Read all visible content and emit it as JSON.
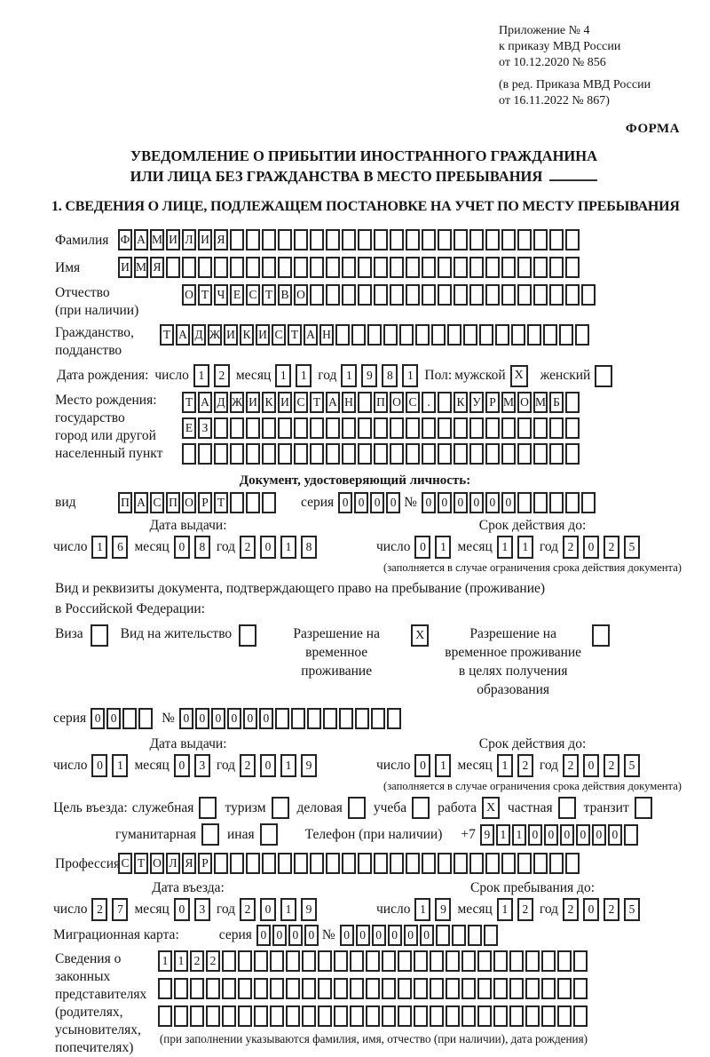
{
  "date_words": {
    "day": "число",
    "month": "месяц",
    "year": "год"
  },
  "header": {
    "lines": [
      "Приложение № 4",
      "к приказу МВД России",
      "от 10.12.2020 № 856"
    ],
    "sub_lines": [
      "(в ред. Приказа МВД России",
      "от 16.11.2022 № 867)"
    ],
    "form_label": "ФОРМА"
  },
  "title": {
    "line1": "УВЕДОМЛЕНИЕ О ПРИБЫТИИ ИНОСТРАННОГО ГРАЖДАНИНА",
    "line2": "ИЛИ ЛИЦА БЕЗ ГРАЖДАНСТВА В МЕСТО ПРЕБЫВАНИЯ"
  },
  "section1_title": "1. СВЕДЕНИЯ О ЛИЦЕ, ПОДЛЕЖАЩЕМ ПОСТАНОВКЕ НА УЧЕТ ПО МЕСТУ ПРЕБЫВАНИЯ",
  "fields": {
    "surname": {
      "label": "Фамилия",
      "boxes": {
        "chars": "ФАМИЛИЯ",
        "count": 29
      }
    },
    "name": {
      "label": "Имя",
      "boxes": {
        "chars": "ИМЯ",
        "count": 29
      }
    },
    "patronymic": {
      "label1": "Отчество",
      "label2": "(при наличии)",
      "boxes": {
        "chars": "ОТЧЕСТВО",
        "count": 26
      }
    },
    "citizenship": {
      "label1": "Гражданство,",
      "label2": "подданство",
      "boxes": {
        "chars": "ТАДЖИКИСТАН",
        "count": 27
      }
    },
    "birth_date": {
      "label": "Дата рождения:",
      "day": "12",
      "month": "11",
      "year": "1981",
      "sex_label": "Пол:",
      "male_label": "мужской",
      "male_checked": "X",
      "female_label": "женский",
      "female_checked": ""
    },
    "birth_place": {
      "labels": [
        "Место рождения:",
        "государство",
        "город или другой",
        "населенный пункт"
      ],
      "rows": [
        {
          "chars": "ТАДЖИКИСТАН ПОС. КУРМОМБ",
          "count": 25
        },
        {
          "chars": "ЕЗ",
          "count": 25
        },
        {
          "chars": "",
          "count": 25
        }
      ]
    }
  },
  "doc_identity": {
    "header": "Документ, удостоверяющий личность:",
    "kind_label": "вид",
    "kind": {
      "chars": "ПАСПОРТ",
      "count": 10
    },
    "series_label": "серия",
    "series": {
      "chars": "0000",
      "count": 4
    },
    "number_label": "№",
    "number": {
      "chars": "000000",
      "count": 11
    },
    "issue_title": "Дата выдачи:",
    "issue": {
      "day": "16",
      "month": "08",
      "year": "2018"
    },
    "valid_title": "Срок действия до:",
    "valid": {
      "day": "01",
      "month": "11",
      "year": "2025"
    },
    "note": "(заполняется в случае ограничения срока действия документа)"
  },
  "residence_doc": {
    "intro1": "Вид и реквизиты документа, подтверждающего право на пребывание (проживание)",
    "intro2": "в Российской Федерации:",
    "options": [
      {
        "label": "Виза",
        "checked": ""
      },
      {
        "label": "Вид на жительство",
        "checked": ""
      },
      {
        "label": "Разрешение на временное проживание",
        "checked": "X"
      },
      {
        "label": "Разрешение на временное проживание в целях получения образования",
        "checked": ""
      }
    ],
    "series_label": "серия",
    "series": {
      "chars": "00",
      "count": 4
    },
    "number_label": "№",
    "number": {
      "chars": "000000",
      "count": 14
    },
    "issue_title": "Дата выдачи:",
    "issue": {
      "day": "01",
      "month": "03",
      "year": "2019"
    },
    "valid_title": "Срок действия до:",
    "valid": {
      "day": "01",
      "month": "12",
      "year": "2025"
    },
    "note": "(заполняется в случае ограничения срока действия документа)"
  },
  "entry_purpose": {
    "label": "Цель въезда:",
    "options_row1": [
      {
        "label": "служебная",
        "checked": ""
      },
      {
        "label": "туризм",
        "checked": ""
      },
      {
        "label": "деловая",
        "checked": ""
      },
      {
        "label": "учеба",
        "checked": ""
      },
      {
        "label": "работа",
        "checked": "X"
      },
      {
        "label": "частная",
        "checked": ""
      },
      {
        "label": "транзит",
        "checked": ""
      }
    ],
    "options_row2": [
      {
        "label": "гуманитарная",
        "checked": ""
      },
      {
        "label": "иная",
        "checked": ""
      }
    ],
    "phone_label": "Телефон (при наличии)",
    "phone_prefix": "+7",
    "phone": {
      "chars": "911000000",
      "count": 10
    }
  },
  "profession": {
    "label": "Профессия",
    "boxes": {
      "chars": "СТОЛЯР",
      "count": 29
    }
  },
  "entry_dates": {
    "entry_title": "Дата въезда:",
    "entry": {
      "day": "27",
      "month": "03",
      "year": "2019"
    },
    "stay_title": "Срок пребывания до:",
    "stay": {
      "day": "19",
      "month": "12",
      "year": "2025"
    }
  },
  "migration_card": {
    "label": "Миграционная карта:",
    "series_label": "серия",
    "series": {
      "chars": "0000",
      "count": 4
    },
    "number_label": "№",
    "number": {
      "chars": "000000",
      "count": 10
    }
  },
  "legal_reps": {
    "labels": [
      "Сведения о",
      "законных",
      "представителях",
      "(родителях,",
      "усыновителях,",
      "попечителях)"
    ],
    "rows": [
      {
        "chars": "1122",
        "count": 27
      },
      {
        "chars": "",
        "count": 27
      },
      {
        "chars": "",
        "count": 27
      }
    ],
    "note": "(при заполнении указываются фамилия, имя, отчество (при наличии), дата рождения)"
  }
}
